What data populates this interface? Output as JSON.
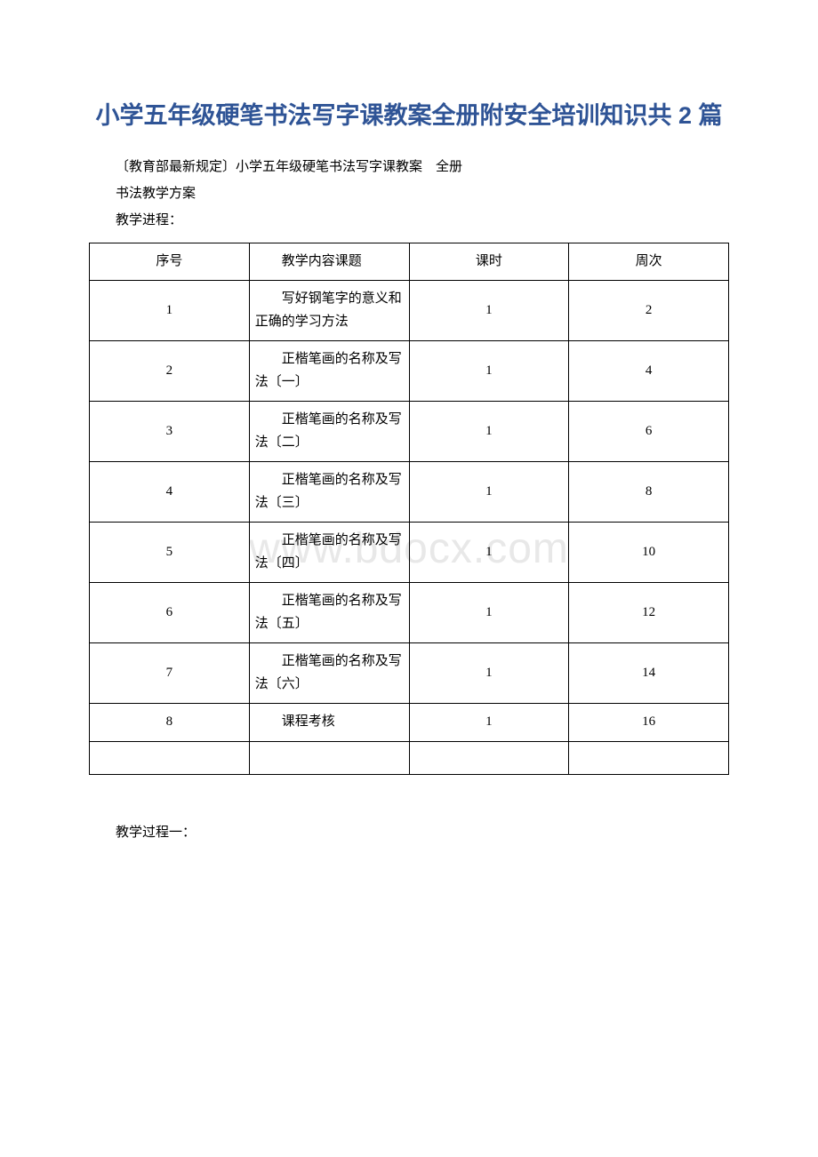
{
  "watermark": "www.bdocx.com",
  "title": "小学五年级硬笔书法写字课教案全册附安全培训知识共 2 篇",
  "intro_lines": [
    "〔教育部最新规定〕小学五年级硬笔书法写字课教案　全册",
    "书法教学方案",
    "教学进程："
  ],
  "table": {
    "headers": [
      "序号",
      "教学内容课题",
      "课时",
      "周次"
    ],
    "rows": [
      {
        "seq": "1",
        "topic": "写好钢笔字的意义和正确的学习方法",
        "hours": "1",
        "week": "2"
      },
      {
        "seq": "2",
        "topic": "正楷笔画的名称及写法〔一〕",
        "hours": "1",
        "week": "4"
      },
      {
        "seq": "3",
        "topic": "正楷笔画的名称及写法〔二〕",
        "hours": "1",
        "week": "6"
      },
      {
        "seq": "4",
        "topic": "正楷笔画的名称及写法〔三〕",
        "hours": "1",
        "week": "8"
      },
      {
        "seq": "5",
        "topic": "正楷笔画的名称及写法〔四〕",
        "hours": "1",
        "week": "10"
      },
      {
        "seq": "6",
        "topic": "正楷笔画的名称及写法〔五〕",
        "hours": "1",
        "week": "12"
      },
      {
        "seq": "7",
        "topic": "正楷笔画的名称及写法〔六〕",
        "hours": "1",
        "week": "14"
      },
      {
        "seq": "8",
        "topic": "课程考核",
        "hours": "1",
        "week": "16"
      }
    ]
  },
  "after_table": "教学过程一："
}
